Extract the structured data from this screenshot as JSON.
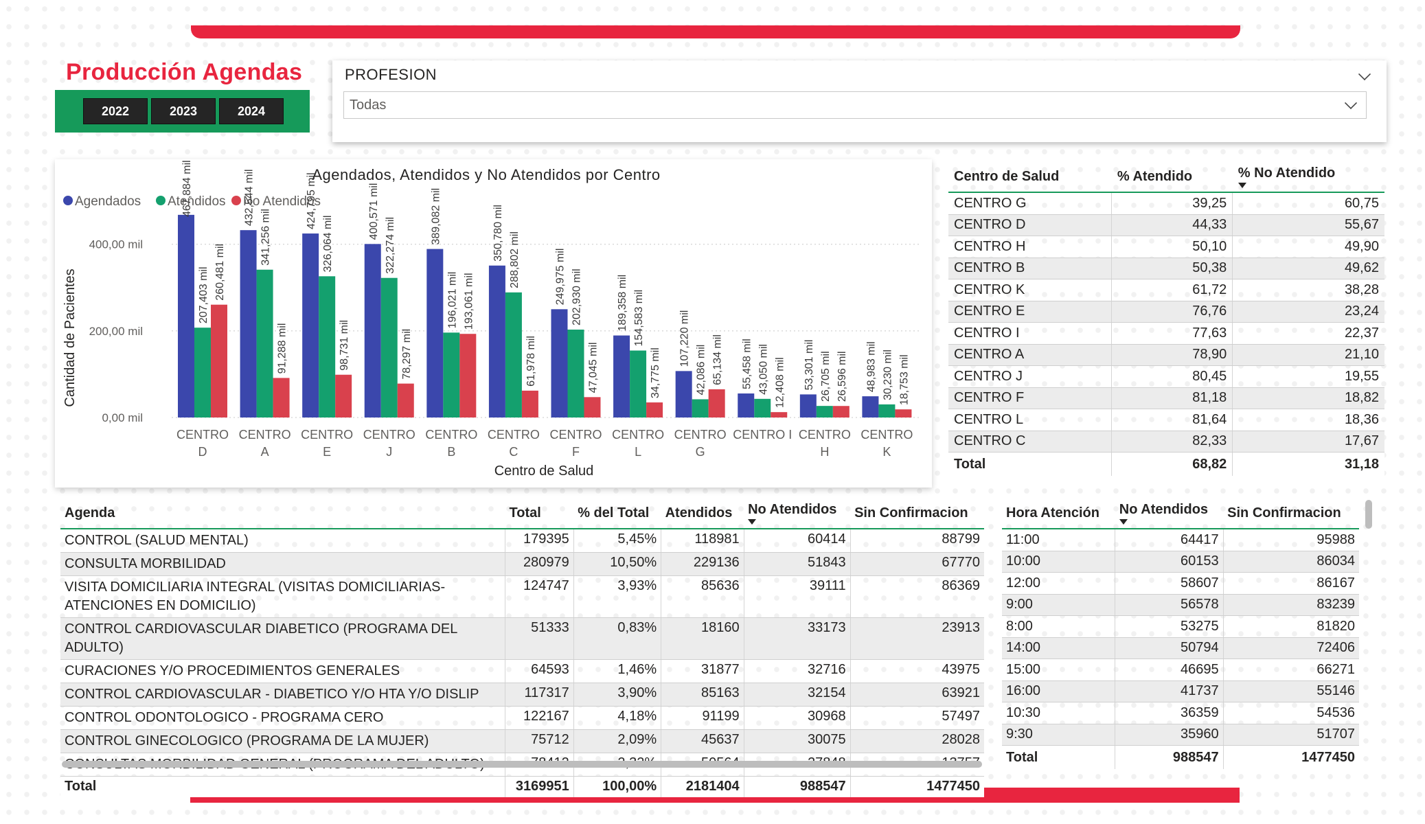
{
  "header": {
    "title": "Producción Agendas",
    "years": [
      "2022",
      "2023",
      "2024"
    ]
  },
  "slicer": {
    "label": "PROFESION",
    "value": "Todas"
  },
  "colors": {
    "agendados": "#3b47ac",
    "atendidos": "#14a06e",
    "no_atendidos": "#d9414d",
    "accent_red": "#e8253f",
    "accent_green": "#169a5a"
  },
  "chart_data": {
    "type": "bar",
    "title": "Agendados, Atendidos y No Atendidos por Centro",
    "xlabel": "Centro de Salud",
    "ylabel": "Cantidad de Pacientes",
    "ylim": [
      0,
      520
    ],
    "yticks": [
      "0,00 mil",
      "200,00 mil",
      "400,00 mil"
    ],
    "ytick_values": [
      0,
      200,
      400
    ],
    "legend_position": "top-left",
    "categories": [
      [
        "CENTRO",
        "D"
      ],
      [
        "CENTRO",
        "A"
      ],
      [
        "CENTRO",
        "E"
      ],
      [
        "CENTRO",
        "J"
      ],
      [
        "CENTRO",
        "B"
      ],
      [
        "CENTRO",
        "C"
      ],
      [
        "CENTRO",
        "F"
      ],
      [
        "CENTRO",
        "L"
      ],
      [
        "CENTRO",
        "G"
      ],
      [
        "CENTRO I"
      ],
      [
        "CENTRO",
        "H"
      ],
      [
        "CENTRO",
        "K"
      ]
    ],
    "series": [
      {
        "name": "Agendados",
        "values": [
          467.884,
          432.544,
          424.795,
          400.571,
          389.082,
          350.78,
          249.975,
          189.358,
          107.22,
          55.458,
          53.301,
          48.983
        ],
        "labels": [
          "467,884 mil",
          "432,544 mil",
          "424,795 mil",
          "400,571 mil",
          "389,082 mil",
          "350,780 mil",
          "249,975 mil",
          "189,358 mil",
          "107,220 mil",
          "55,458 mil",
          "53,301 mil",
          "48,983 mil"
        ]
      },
      {
        "name": "Atendidos",
        "values": [
          207.403,
          341.256,
          326.064,
          322.274,
          196.021,
          288.802,
          202.93,
          154.583,
          42.086,
          43.05,
          26.705,
          30.23
        ],
        "labels": [
          "207,403 mil",
          "341,256 mil",
          "326,064 mil",
          "322,274 mil",
          "196,021 mil",
          "288,802 mil",
          "202,930 mil",
          "154,583 mil",
          "42,086 mil",
          "43,050 mil",
          "26,705 mil",
          "30,230 mil"
        ]
      },
      {
        "name": "No Atendidos",
        "values": [
          260.481,
          91.288,
          98.731,
          78.297,
          193.061,
          61.978,
          47.045,
          34.775,
          65.134,
          12.408,
          26.596,
          18.753
        ],
        "labels": [
          "260,481 mil",
          "91,288 mil",
          "98,731 mil",
          "78,297 mil",
          "193,061 mil",
          "61,978 mil",
          "47,045 mil",
          "34,775 mil",
          "65,134 mil",
          "12,408 mil",
          "26,596 mil",
          "18,753 mil"
        ]
      }
    ]
  },
  "centro_table": {
    "headers": [
      "Centro de Salud",
      "% Atendido",
      "% No Atendido"
    ],
    "rows": [
      [
        "CENTRO G",
        "39,25",
        "60,75"
      ],
      [
        "CENTRO D",
        "44,33",
        "55,67"
      ],
      [
        "CENTRO H",
        "50,10",
        "49,90"
      ],
      [
        "CENTRO B",
        "50,38",
        "49,62"
      ],
      [
        "CENTRO K",
        "61,72",
        "38,28"
      ],
      [
        "CENTRO E",
        "76,76",
        "23,24"
      ],
      [
        "CENTRO I",
        "77,63",
        "22,37"
      ],
      [
        "CENTRO A",
        "78,90",
        "21,10"
      ],
      [
        "CENTRO J",
        "80,45",
        "19,55"
      ],
      [
        "CENTRO F",
        "81,18",
        "18,82"
      ],
      [
        "CENTRO L",
        "81,64",
        "18,36"
      ],
      [
        "CENTRO C",
        "82,33",
        "17,67"
      ]
    ],
    "total": [
      "Total",
      "68,82",
      "31,18"
    ]
  },
  "agenda_table": {
    "headers": [
      "Agenda",
      "Total",
      "% del Total",
      "Atendidos",
      "No Atendidos",
      "Sin Confirmacion"
    ],
    "rows": [
      [
        "CONTROL (SALUD MENTAL)",
        "179395",
        "5,45%",
        "118981",
        "60414",
        "88799"
      ],
      [
        "CONSULTA MORBILIDAD",
        "280979",
        "10,50%",
        "229136",
        "51843",
        "67770"
      ],
      [
        "VISITA DOMICILIARIA INTEGRAL (VISITAS DOMICILIARIAS-ATENCIONES EN DOMICILIO)",
        "124747",
        "3,93%",
        "85636",
        "39111",
        "86369"
      ],
      [
        "CONTROL CARDIOVASCULAR DIABETICO (PROGRAMA DEL ADULTO)",
        "51333",
        "0,83%",
        "18160",
        "33173",
        "23913"
      ],
      [
        "CURACIONES Y/O PROCEDIMIENTOS GENERALES",
        "64593",
        "1,46%",
        "31877",
        "32716",
        "43975"
      ],
      [
        "CONTROL CARDIOVASCULAR - DIABETICO Y/O HTA Y/O DISLIP",
        "117317",
        "3,90%",
        "85163",
        "32154",
        "63921"
      ],
      [
        "CONTROL ODONTOLOGICO - PROGRAMA CERO",
        "122167",
        "4,18%",
        "91199",
        "30968",
        "57497"
      ],
      [
        "CONTROL GINECOLOGICO (PROGRAMA DE LA MUJER)",
        "75712",
        "2,09%",
        "45637",
        "30075",
        "28028"
      ],
      [
        "CONSULTAS MORBILIDAD GENERAL (PROGRAMA DEL ADULTO)",
        "78412",
        "2,32%",
        "50564",
        "27848",
        "13757"
      ]
    ],
    "total": [
      "Total",
      "3169951",
      "100,00%",
      "2181404",
      "988547",
      "1477450"
    ]
  },
  "hora_table": {
    "headers": [
      "Hora Atención",
      "No Atendidos",
      "Sin Confirmacion"
    ],
    "rows": [
      [
        "11:00",
        "64417",
        "95988"
      ],
      [
        "10:00",
        "60153",
        "86034"
      ],
      [
        "12:00",
        "58607",
        "86167"
      ],
      [
        "9:00",
        "56578",
        "83239"
      ],
      [
        "8:00",
        "53275",
        "81820"
      ],
      [
        "14:00",
        "50794",
        "72406"
      ],
      [
        "15:00",
        "46695",
        "66271"
      ],
      [
        "16:00",
        "41737",
        "55146"
      ],
      [
        "10:30",
        "36359",
        "54536"
      ],
      [
        "9:30",
        "35960",
        "51707"
      ]
    ],
    "total": [
      "Total",
      "988547",
      "1477450"
    ]
  }
}
